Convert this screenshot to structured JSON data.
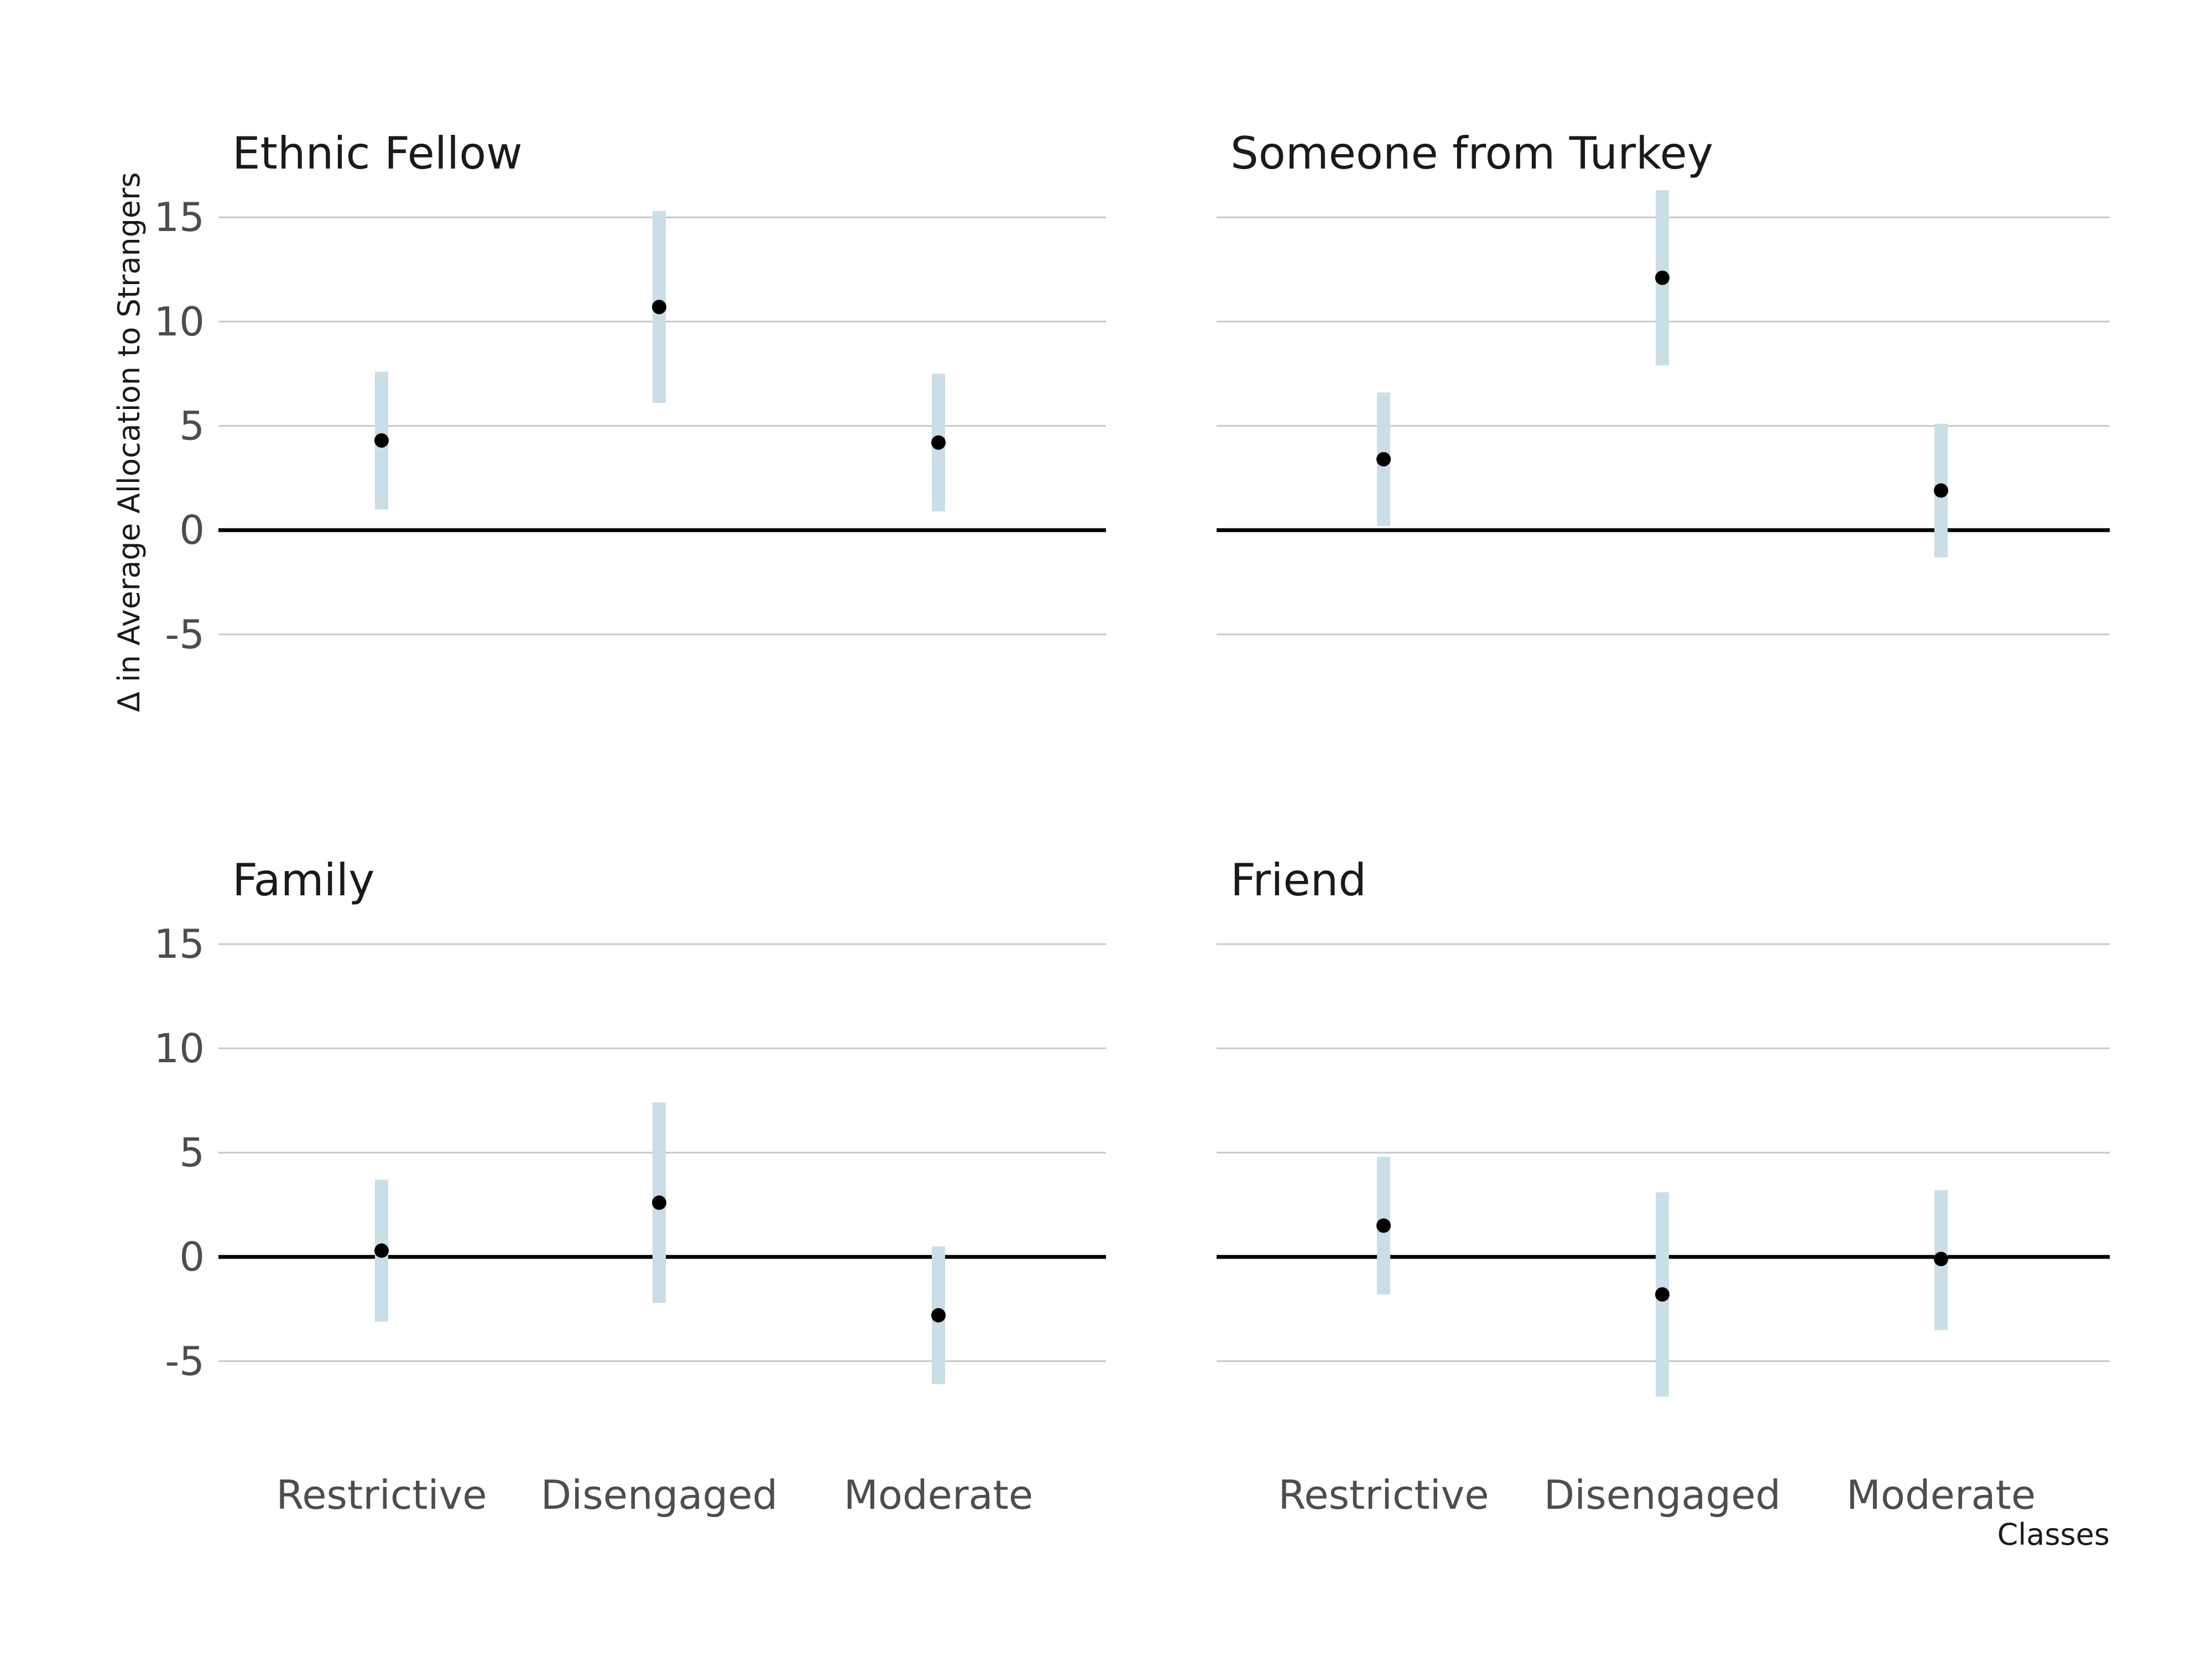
{
  "chart_data": {
    "type": "scatter",
    "ylabel": "Δ in Average Allocation to Strangers",
    "xlabel": "Classes",
    "categories": [
      "Restrictive",
      "Disengaged",
      "Moderate"
    ],
    "y_ticks": [
      "15",
      "10",
      "5",
      "0",
      "-5"
    ],
    "ylim": [
      -8.5,
      18
    ],
    "grid": true,
    "colors": {
      "interval": "#c9dee6",
      "point": "#000000",
      "zero_line": "#000000",
      "grid": "#c8c8c8"
    },
    "panels": [
      {
        "title": "Ethnic Fellow",
        "estimate": [
          4.3,
          10.7,
          4.2
        ],
        "lower": [
          1.0,
          6.1,
          0.9
        ],
        "upper": [
          7.6,
          15.3,
          7.5
        ]
      },
      {
        "title": "Someone from Turkey",
        "estimate": [
          3.4,
          12.1,
          1.9
        ],
        "lower": [
          0.2,
          7.9,
          -1.3
        ],
        "upper": [
          6.6,
          16.3,
          5.1
        ]
      },
      {
        "title": "Family",
        "estimate": [
          0.3,
          2.6,
          -2.8
        ],
        "lower": [
          -3.1,
          -2.2,
          -6.1
        ],
        "upper": [
          3.7,
          7.4,
          0.5
        ]
      },
      {
        "title": "Friend",
        "estimate": [
          1.5,
          -1.8,
          -0.1
        ],
        "lower": [
          -1.8,
          -6.7,
          -3.5
        ],
        "upper": [
          4.8,
          3.1,
          3.2
        ]
      }
    ]
  }
}
